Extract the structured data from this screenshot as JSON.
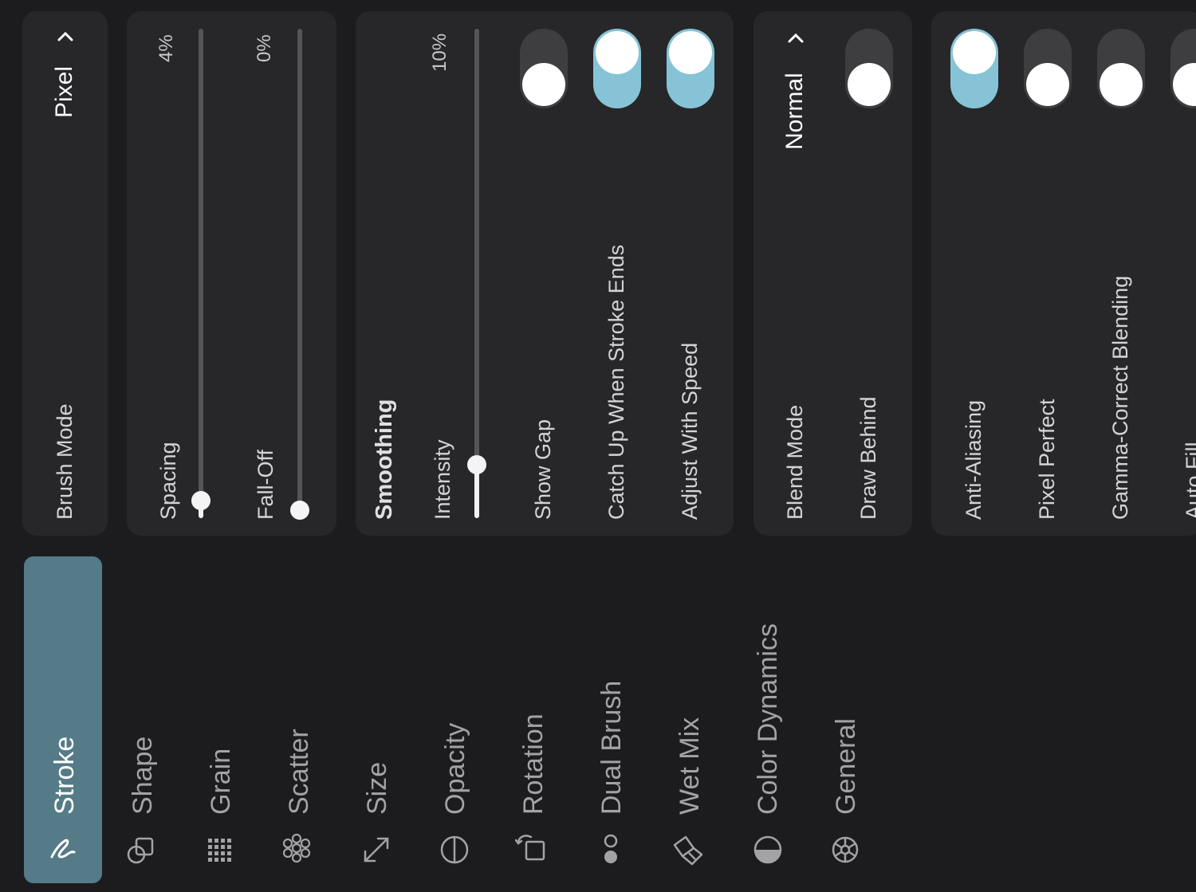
{
  "nav": {
    "items": [
      {
        "label": "Stroke",
        "icon": "stroke-icon",
        "active": true
      },
      {
        "label": "Shape",
        "icon": "shape-icon"
      },
      {
        "label": "Grain",
        "icon": "grain-icon"
      },
      {
        "label": "Scatter",
        "icon": "scatter-icon"
      },
      {
        "label": "Size",
        "icon": "size-icon"
      },
      {
        "label": "Opacity",
        "icon": "opacity-icon"
      },
      {
        "label": "Rotation",
        "icon": "rotation-icon"
      },
      {
        "label": "Dual Brush",
        "icon": "dual-brush-icon"
      },
      {
        "label": "Wet Mix",
        "icon": "wet-mix-icon"
      },
      {
        "label": "Color Dynamics",
        "icon": "color-dynamics-icon"
      },
      {
        "label": "General",
        "icon": "gear-icon"
      }
    ]
  },
  "brush_mode": {
    "label": "Brush Mode",
    "value": "Pixel"
  },
  "spacing": {
    "label": "Spacing",
    "value": "4%",
    "level": 0.04
  },
  "falloff": {
    "label": "Fall-Off",
    "value": "0%",
    "level": 0.0
  },
  "smoothing": {
    "title": "Smoothing",
    "intensity": {
      "label": "Intensity",
      "value": "10%",
      "level": 0.1
    },
    "show_gap": {
      "label": "Show Gap",
      "on": false
    },
    "catch_up": {
      "label": "Catch Up When Stroke Ends",
      "on": true
    },
    "adjust_speed": {
      "label": "Adjust With Speed",
      "on": true
    }
  },
  "blend": {
    "blend_mode": {
      "label": "Blend Mode",
      "value": "Normal"
    },
    "draw_behind": {
      "label": "Draw Behind",
      "on": false
    }
  },
  "render": {
    "anti_aliasing": {
      "label": "Anti-Aliasing",
      "on": true
    },
    "pixel_perfect": {
      "label": "Pixel Perfect",
      "on": false
    },
    "gamma": {
      "label": "Gamma-Correct Blending",
      "on": false
    },
    "auto_fill": {
      "label": "Auto Fill",
      "on": false
    }
  },
  "colors": {
    "accent": "#86c3d6",
    "active_nav": "#547b87",
    "panel": "#272729",
    "background": "#1c1c1e"
  }
}
